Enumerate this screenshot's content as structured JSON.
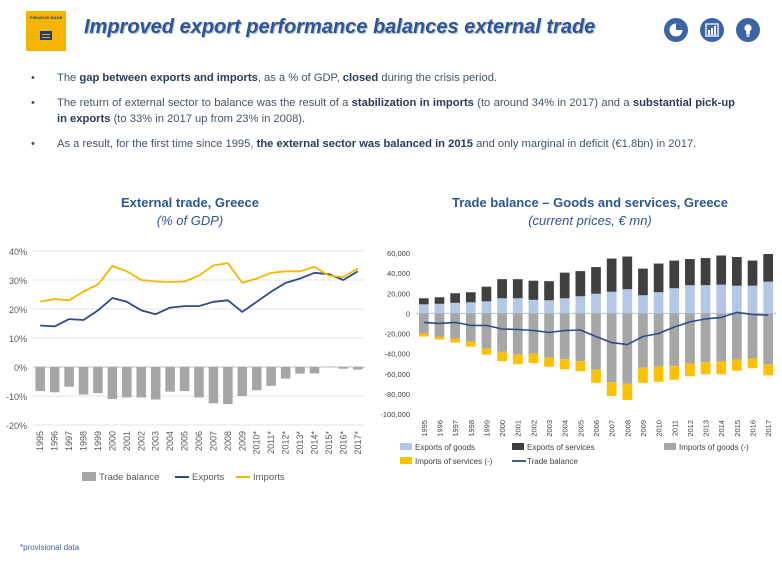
{
  "header": {
    "logo_text": "PIRAEUS BANK",
    "title": "Improved export performance balances external trade",
    "icons": [
      "pie-chart-icon",
      "bar-chart-icon",
      "lightbulb-icon"
    ]
  },
  "bullets": [
    {
      "parts": [
        {
          "t": "The ",
          "b": false
        },
        {
          "t": "gap between exports and imports",
          "b": true
        },
        {
          "t": ", as a % of GDP, ",
          "b": false
        },
        {
          "t": "closed",
          "b": true
        },
        {
          "t": " during the crisis period.",
          "b": false
        }
      ]
    },
    {
      "parts": [
        {
          "t": "The return of external sector to balance was the result of a ",
          "b": false
        },
        {
          "t": "stabilization in imports",
          "b": true
        },
        {
          "t": " (to around 34% in 2017) and a ",
          "b": false
        },
        {
          "t": "substantial pick-up in exports",
          "b": true
        },
        {
          "t": " (to 33% in 2017 up from 23% in 2008).",
          "b": false
        }
      ]
    },
    {
      "parts": [
        {
          "t": "As a result, for the first time since 1995, ",
          "b": false
        },
        {
          "t": "the external sector was balanced in 2015",
          "b": true
        },
        {
          "t": " and only marginal in deficit (€1.8bn) in 2017.",
          "b": false
        }
      ]
    }
  ],
  "footnote": "*provisional data",
  "colors": {
    "trade_balance": "#a6a6a6",
    "exports": "#2e4a8a",
    "imports": "#f5b800",
    "exports_goods": "#b4c7e7",
    "exports_services": "#404040",
    "imports_goods": "#a6a6a6",
    "imports_services": "#ffc000",
    "trade_balance_line": "#2e4a8a"
  },
  "chart_data": [
    {
      "type": "line",
      "title": "External trade, Greece",
      "subtitle": "(% of GDP)",
      "categories": [
        "1995",
        "1996",
        "1997",
        "1998",
        "1999",
        "2000",
        "2001",
        "2002",
        "2003",
        "2004",
        "2005",
        "2006",
        "2007",
        "2008",
        "2009",
        "2010*",
        "2011*",
        "2012*",
        "2013*",
        "2014*",
        "2015*",
        "2016*",
        "2017*"
      ],
      "ylim": [
        -20,
        40
      ],
      "yticks": [
        "-20%",
        "-10%",
        "0%",
        "10%",
        "20%",
        "30%",
        "40%"
      ],
      "legend_position": "bottom",
      "series": [
        {
          "name": "Trade balance",
          "type": "bar",
          "values": [
            -8.3,
            -8.7,
            -6.8,
            -9.5,
            -9.0,
            -11.0,
            -10.5,
            -10.5,
            -11.2,
            -8.5,
            -8.3,
            -10.5,
            -12.5,
            -12.8,
            -10.0,
            -8.0,
            -6.5,
            -4.0,
            -2.3,
            -2.2,
            0.1,
            -0.6,
            -0.9
          ]
        },
        {
          "name": "Exports",
          "type": "line",
          "values": [
            14.3,
            14.0,
            16.5,
            16.2,
            19.5,
            23.8,
            22.5,
            19.5,
            18.2,
            20.5,
            21.0,
            21.0,
            22.5,
            23.0,
            19.0,
            22.5,
            26.0,
            29.0,
            30.5,
            32.5,
            32.0,
            30.0,
            33.0
          ]
        },
        {
          "name": "Imports",
          "type": "line",
          "values": [
            22.6,
            23.4,
            23.0,
            26.0,
            28.5,
            34.8,
            33.0,
            30.0,
            29.5,
            29.3,
            29.5,
            31.5,
            35.0,
            35.8,
            29.0,
            30.5,
            32.5,
            33.0,
            33.0,
            34.5,
            31.5,
            31.0,
            34.0
          ]
        }
      ]
    },
    {
      "type": "bar",
      "title": "Trade balance – Goods and services, Greece",
      "subtitle": "(current prices, € mn)",
      "categories": [
        "1995",
        "1996",
        "1997",
        "1998",
        "1999",
        "2000",
        "2001",
        "2002",
        "2003",
        "2004",
        "2005",
        "2006",
        "2007",
        "2008",
        "2009",
        "2010",
        "2011",
        "2012",
        "2013",
        "2014",
        "2015",
        "2016",
        "2017"
      ],
      "ylim": [
        -100000,
        60000
      ],
      "yticks": [
        "-100,000",
        "-80,000",
        "-60,000",
        "-40,000",
        "-20,000",
        "0",
        "20,000",
        "40,000",
        "60,000"
      ],
      "legend_position": "bottom",
      "series": [
        {
          "name": "Exports of goods",
          "type": "stacked-bar",
          "values": [
            9000,
            9500,
            10500,
            11000,
            12000,
            15000,
            15000,
            13500,
            13000,
            15000,
            17000,
            19500,
            21500,
            24000,
            18000,
            21000,
            25000,
            28000,
            28000,
            28500,
            27500,
            27500,
            31500
          ]
        },
        {
          "name": "Exports of services",
          "type": "stacked-bar",
          "values": [
            6000,
            6500,
            9500,
            10000,
            14500,
            19000,
            19000,
            19000,
            19000,
            25500,
            25000,
            26500,
            33000,
            32500,
            26500,
            28500,
            27500,
            26000,
            27000,
            29000,
            28500,
            25000,
            27500
          ]
        },
        {
          "name": "Imports of goods (-)",
          "type": "stacked-bar",
          "values": [
            -20000,
            -23000,
            -25000,
            -28000,
            -35000,
            -38000,
            -41000,
            -40000,
            -44000,
            -45500,
            -47500,
            -56000,
            -68500,
            -70000,
            -54000,
            -53000,
            -52500,
            -50000,
            -48500,
            -48000,
            -46000,
            -45000,
            -51000
          ]
        },
        {
          "name": "Imports of services (-)",
          "type": "stacked-bar",
          "values": [
            -3000,
            -3000,
            -4000,
            -5000,
            -6000,
            -9500,
            -9500,
            -9500,
            -9000,
            -10000,
            -10000,
            -13000,
            -13500,
            -16000,
            -15000,
            -15000,
            -13500,
            -12500,
            -12000,
            -12500,
            -11000,
            -9500,
            -10500
          ]
        },
        {
          "name": "Trade balance",
          "type": "line",
          "values": [
            -9000,
            -10000,
            -9000,
            -12000,
            -12000,
            -15500,
            -16000,
            -17000,
            -19000,
            -17000,
            -16500,
            -23000,
            -29000,
            -31000,
            -23000,
            -20000,
            -13500,
            -8500,
            -5500,
            -4000,
            1000,
            -1000,
            -1800
          ]
        }
      ]
    }
  ]
}
